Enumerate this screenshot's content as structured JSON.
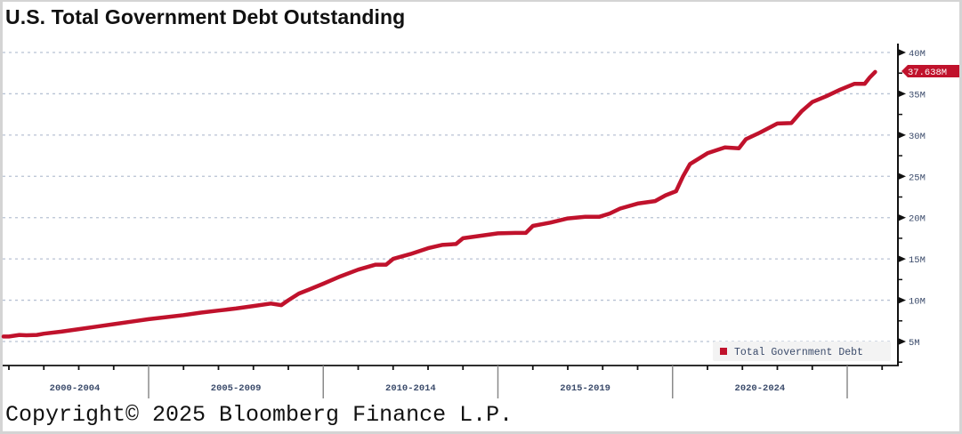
{
  "title": "U.S. Total Government Debt Outstanding",
  "copyright": "Copyright© 2025 Bloomberg Finance L.P.",
  "colors": {
    "line": "#c0122c",
    "grid": "#b8c2d4",
    "axis": "#111111",
    "tick_label": "#3a4a6a",
    "last_value_bg": "#c0122c",
    "last_value_text": "#ffffff",
    "legend_bg": "#f3f3f3"
  },
  "legend": {
    "label": "Total Government Debt",
    "swatch_color": "#c0122c"
  },
  "last_value_label": "37.638M",
  "chart_data": {
    "type": "line",
    "title": "U.S. Total Government Debt Outstanding",
    "xlabel": "",
    "ylabel": "",
    "ylim": [
      2.5,
      40.5
    ],
    "y_ticks": [
      "5M",
      "10M",
      "15M",
      "20M",
      "25M",
      "30M",
      "35M",
      "40M"
    ],
    "y_tick_values": [
      5,
      10,
      15,
      20,
      25,
      30,
      35,
      40
    ],
    "x_period_labels": [
      "2000-2004",
      "2005-2009",
      "2010-2014",
      "2015-2019",
      "2020-2024"
    ],
    "x_range": [
      2000.75,
      2025.8
    ],
    "grid": true,
    "legend_position": "bottom-right inside plot",
    "units": "USD millions (M = millions in source units)",
    "series": [
      {
        "name": "Total Government Debt",
        "last_value": 37.638,
        "x": [
          2000.75,
          2001.0,
          2001.3,
          2001.5,
          2001.8,
          2002.0,
          2002.5,
          2003.0,
          2003.5,
          2004.0,
          2004.5,
          2005.0,
          2005.5,
          2006.0,
          2006.5,
          2007.0,
          2007.5,
          2008.0,
          2008.5,
          2008.8,
          2009.0,
          2009.3,
          2009.6,
          2010.0,
          2010.5,
          2011.0,
          2011.5,
          2011.8,
          2012.0,
          2012.5,
          2013.0,
          2013.4,
          2013.8,
          2014.0,
          2014.5,
          2015.0,
          2015.5,
          2015.8,
          2016.0,
          2016.5,
          2017.0,
          2017.5,
          2017.9,
          2018.2,
          2018.5,
          2019.0,
          2019.5,
          2019.8,
          2020.1,
          2020.3,
          2020.5,
          2021.0,
          2021.5,
          2021.9,
          2022.1,
          2022.5,
          2023.0,
          2023.4,
          2023.7,
          2024.0,
          2024.4,
          2024.8,
          2025.2,
          2025.5,
          2025.65,
          2025.8
        ],
        "y": [
          5.6,
          5.6,
          5.8,
          5.75,
          5.8,
          5.95,
          6.2,
          6.5,
          6.8,
          7.1,
          7.4,
          7.7,
          7.95,
          8.2,
          8.5,
          8.75,
          9.0,
          9.3,
          9.6,
          9.4,
          10.0,
          10.8,
          11.3,
          12.0,
          12.9,
          13.7,
          14.3,
          14.3,
          15.0,
          15.6,
          16.3,
          16.7,
          16.8,
          17.5,
          17.8,
          18.1,
          18.15,
          18.15,
          19.0,
          19.4,
          19.9,
          20.1,
          20.1,
          20.5,
          21.1,
          21.7,
          22.0,
          22.7,
          23.2,
          25.0,
          26.5,
          27.8,
          28.5,
          28.4,
          29.5,
          30.3,
          31.4,
          31.45,
          32.9,
          34.0,
          34.7,
          35.5,
          36.2,
          36.2,
          37.0,
          37.64
        ]
      }
    ]
  }
}
